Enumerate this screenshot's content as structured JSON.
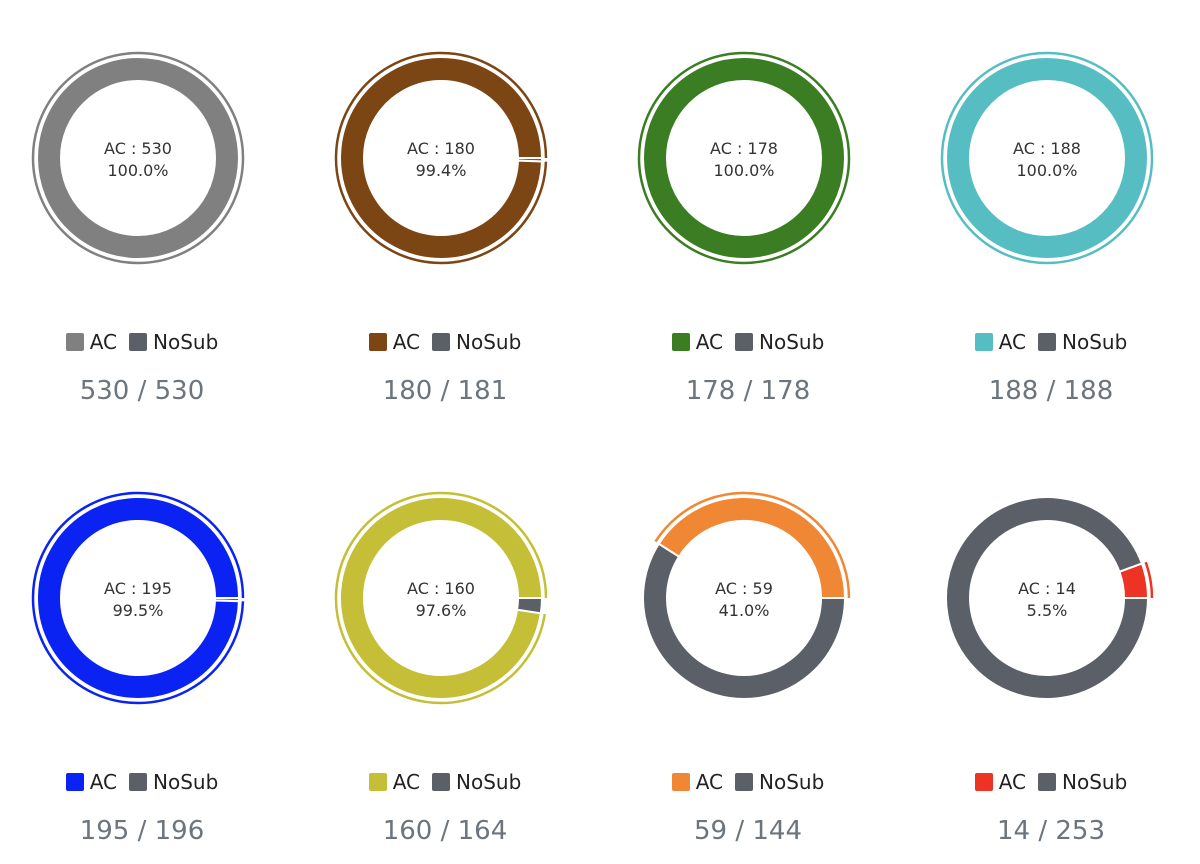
{
  "colors": {
    "nosub": "#5b6068"
  },
  "chart_data": [
    {
      "type": "pie",
      "categories": [
        "AC",
        "NoSub"
      ],
      "values": [
        530,
        0
      ],
      "color": "#808080",
      "center_line1": "AC : 530",
      "center_line2": "100.0%",
      "legend": {
        "ac": "AC",
        "nosub": "NoSub"
      },
      "ratio": "530 / 530"
    },
    {
      "type": "pie",
      "categories": [
        "AC",
        "NoSub"
      ],
      "values": [
        180,
        1
      ],
      "color": "#7b4514",
      "center_line1": "AC : 180",
      "center_line2": "99.4%",
      "legend": {
        "ac": "AC",
        "nosub": "NoSub"
      },
      "ratio": "180 / 181"
    },
    {
      "type": "pie",
      "categories": [
        "AC",
        "NoSub"
      ],
      "values": [
        178,
        0
      ],
      "color": "#3a7d22",
      "center_line1": "AC : 178",
      "center_line2": "100.0%",
      "legend": {
        "ac": "AC",
        "nosub": "NoSub"
      },
      "ratio": "178 / 178"
    },
    {
      "type": "pie",
      "categories": [
        "AC",
        "NoSub"
      ],
      "values": [
        188,
        0
      ],
      "color": "#56bec3",
      "center_line1": "AC : 188",
      "center_line2": "100.0%",
      "legend": {
        "ac": "AC",
        "nosub": "NoSub"
      },
      "ratio": "188 / 188"
    },
    {
      "type": "pie",
      "categories": [
        "AC",
        "NoSub"
      ],
      "values": [
        195,
        1
      ],
      "color": "#0a23f3",
      "center_line1": "AC : 195",
      "center_line2": "99.5%",
      "legend": {
        "ac": "AC",
        "nosub": "NoSub"
      },
      "ratio": "195 / 196"
    },
    {
      "type": "pie",
      "categories": [
        "AC",
        "NoSub"
      ],
      "values": [
        160,
        4
      ],
      "color": "#c5bf38",
      "center_line1": "AC : 160",
      "center_line2": "97.6%",
      "legend": {
        "ac": "AC",
        "nosub": "NoSub"
      },
      "ratio": "160 / 164"
    },
    {
      "type": "pie",
      "categories": [
        "AC",
        "NoSub"
      ],
      "values": [
        59,
        85
      ],
      "color": "#f08735",
      "center_line1": "AC : 59",
      "center_line2": "41.0%",
      "legend": {
        "ac": "AC",
        "nosub": "NoSub"
      },
      "ratio": "59 / 144"
    },
    {
      "type": "pie",
      "categories": [
        "AC",
        "NoSub"
      ],
      "values": [
        14,
        239
      ],
      "color": "#ec3324",
      "center_line1": "AC : 14",
      "center_line2": "5.5%",
      "legend": {
        "ac": "AC",
        "nosub": "NoSub"
      },
      "ratio": "14 / 253"
    }
  ]
}
